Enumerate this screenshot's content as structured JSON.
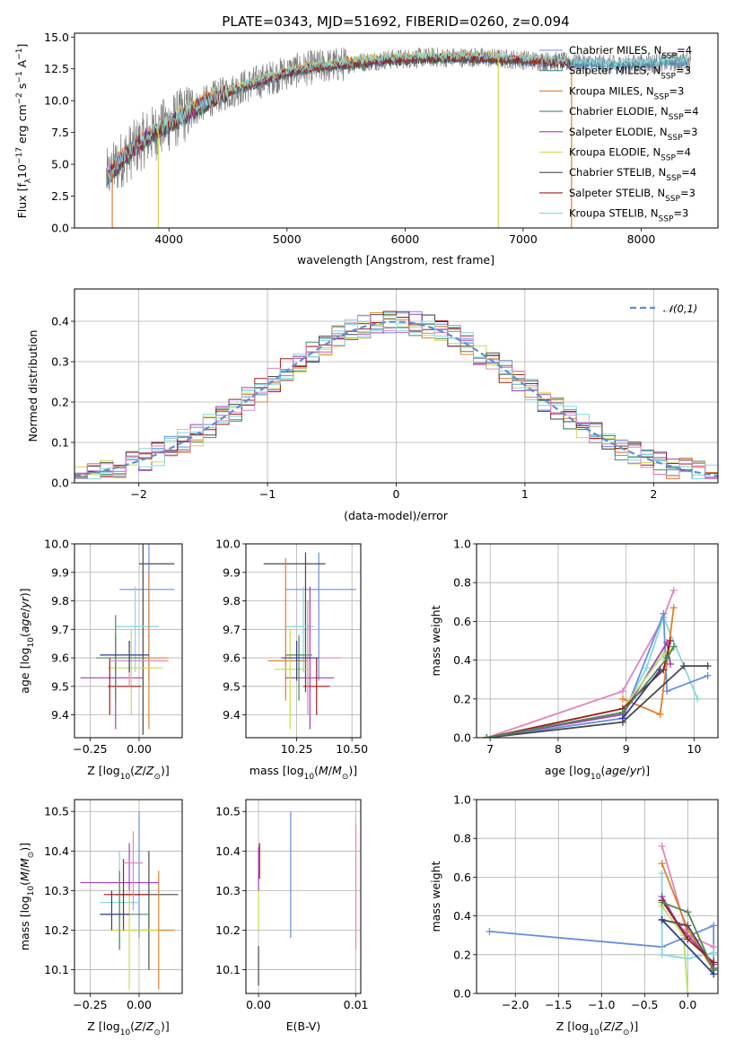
{
  "title": "PLATE=0343, MJD=51692, FIBERID=0260, z=0.094",
  "colors": {
    "data": "#808080",
    "gauss": "#5b8fd6",
    "models": [
      "#6a8fdc",
      "#7fd6da",
      "#e07f2a",
      "#4c8a59",
      "#a33fb3",
      "#cfd94c",
      "#4a4a4a",
      "#a11c1c",
      "#84d9df",
      "#e086c0",
      "#b6e06b",
      "#2f3f8f"
    ]
  },
  "chart_data": [
    {
      "id": "spectrum",
      "type": "line",
      "xlabel": "wavelength [Angstrom, rest frame]",
      "ylabel": "Flux [f_λ10^-17 erg cm^-2 s^-1 A^-1]",
      "xlim": [
        3200,
        8650
      ],
      "ylim": [
        0,
        15.3
      ],
      "xticks": [
        "4000",
        "5000",
        "6000",
        "7000",
        "8000"
      ],
      "yticks": [
        "0.0",
        "2.5",
        "5.0",
        "7.5",
        "10.0",
        "12.5",
        "15.0"
      ],
      "legend_position": "upper-right",
      "legend": [
        {
          "label": "Chabrier MILES, N_SSP=4",
          "color": "#6a8fdc"
        },
        {
          "label": "Salpeter MILES, N_SSP=3",
          "color": "#4a8a8a"
        },
        {
          "label": "Kroupa MILES, N_SSP=3",
          "color": "#e07f2a"
        },
        {
          "label": "Chabrier ELODIE, N_SSP=4",
          "color": "#4c8a59"
        },
        {
          "label": "Salpeter ELODIE, N_SSP=3",
          "color": "#a33fb3"
        },
        {
          "label": "Kroupa ELODIE, N_SSP=4",
          "color": "#cfd94c"
        },
        {
          "label": "Chabrier STELIB, N_SSP=4",
          "color": "#4a4a4a"
        },
        {
          "label": "Salpeter STELIB, N_SSP=3",
          "color": "#a11c1c"
        },
        {
          "label": "Kroupa STELIB, N_SSP=3",
          "color": "#84d9df"
        }
      ],
      "continuum": {
        "x": [
          3480,
          3600,
          3800,
          4000,
          4200,
          4400,
          4600,
          4800,
          5000,
          5200,
          5400,
          5600,
          5800,
          6000,
          6200,
          6400,
          6600,
          6800,
          7000,
          7200,
          7400,
          7600,
          7800,
          8000,
          8200,
          8400
        ],
        "y": [
          4.0,
          5.4,
          7.0,
          8.2,
          9.3,
          10.3,
          11.0,
          11.6,
          12.2,
          12.6,
          12.8,
          13.0,
          13.2,
          13.3,
          13.4,
          13.4,
          13.4,
          13.3,
          13.2,
          13.1,
          13.0,
          12.9,
          12.8,
          12.9,
          13.0,
          13.1
        ]
      },
      "model_ranges": [
        {
          "model": 0,
          "x": [
            3480,
            8400
          ]
        },
        {
          "model": 1,
          "x": [
            3480,
            8400
          ]
        },
        {
          "model": 2,
          "x": [
            3480,
            7400
          ]
        },
        {
          "model": 3,
          "x": [
            3500,
            6800
          ]
        },
        {
          "model": 4,
          "x": [
            3500,
            6800
          ]
        },
        {
          "model": 5,
          "x": [
            3900,
            6800
          ]
        },
        {
          "model": 6,
          "x": [
            3480,
            7400
          ]
        },
        {
          "model": 7,
          "x": [
            3480,
            7400
          ]
        },
        {
          "model": 8,
          "x": [
            3480,
            8400
          ]
        }
      ]
    },
    {
      "id": "residual-histogram",
      "type": "step",
      "xlabel": "(data-model)/error",
      "ylabel": "Normed distribution",
      "xlim": [
        -2.5,
        2.5
      ],
      "ylim": [
        0,
        0.48
      ],
      "xticks": [
        "-2",
        "-1",
        "0",
        "1",
        "2"
      ],
      "yticks": [
        "0.0",
        "0.1",
        "0.2",
        "0.3",
        "0.4"
      ],
      "grid": true,
      "legend_position": "upper-right",
      "legend": [
        {
          "label": "𝒩(0,1)",
          "style": "dashed",
          "color": "#5b8fd6"
        }
      ],
      "bin_width": 0.1,
      "gaussian": {
        "mean": 0,
        "sigma": 1
      }
    },
    {
      "id": "age-vs-Z",
      "type": "errorbar",
      "xlabel": "Z [log10(Z/Z⊙)]",
      "ylabel": "age [log10(age/yr)]",
      "xlim": [
        -0.33,
        0.22
      ],
      "ylim": [
        9.32,
        10.0
      ],
      "xticks": [
        "-0.25",
        "0.00"
      ],
      "yticks": [
        "9.4",
        "9.5",
        "9.6",
        "9.7",
        "9.8",
        "9.9",
        "10.0"
      ],
      "grid": true,
      "points": [
        {
          "c": 0,
          "x": [
            -0.1,
            0.05,
            0.18
          ],
          "y": [
            9.52,
            9.84,
            10.0
          ]
        },
        {
          "c": 6,
          "x": [
            0.0,
            0.02,
            0.18
          ],
          "y": [
            9.33,
            9.93,
            10.0
          ]
        },
        {
          "c": 8,
          "x": [
            -0.12,
            -0.02,
            0.1
          ],
          "y": [
            9.55,
            9.71,
            9.85
          ]
        },
        {
          "c": 2,
          "x": [
            -0.05,
            0.05,
            0.15
          ],
          "y": [
            9.35,
            9.6,
            9.9
          ]
        },
        {
          "c": 4,
          "x": [
            -0.3,
            -0.12,
            0.02
          ],
          "y": [
            9.35,
            9.53,
            9.68
          ]
        },
        {
          "c": 5,
          "x": [
            -0.16,
            -0.04,
            0.12
          ],
          "y": [
            9.4,
            9.565,
            9.7
          ]
        },
        {
          "c": 7,
          "x": [
            -0.16,
            -0.15,
            0.01
          ],
          "y": [
            9.4,
            9.5,
            9.6
          ]
        },
        {
          "c": 3,
          "x": [
            -0.22,
            -0.12,
            0.04
          ],
          "y": [
            9.45,
            9.6,
            9.75
          ]
        },
        {
          "c": 9,
          "x": [
            -0.15,
            -0.05,
            0.15
          ],
          "y": [
            9.5,
            9.59,
            9.66
          ]
        },
        {
          "c": 11,
          "x": [
            -0.2,
            -0.05,
            0.05
          ],
          "y": [
            9.55,
            9.61,
            9.66
          ]
        }
      ]
    },
    {
      "id": "age-vs-mass",
      "type": "errorbar",
      "xlabel": "mass [log10(M/M⊙)]",
      "ylabel": "",
      "xlim": [
        10.02,
        10.54
      ],
      "ylim": [
        9.32,
        10.0
      ],
      "xticks": [
        "10.25",
        "10.50"
      ],
      "yticks": [
        "9.4",
        "9.5",
        "9.6",
        "9.7",
        "9.8",
        "9.9",
        "10.0"
      ],
      "grid": true,
      "points": [
        {
          "c": 0,
          "x": [
            10.2,
            10.35,
            10.52
          ],
          "y": [
            9.52,
            9.84,
            9.97
          ]
        },
        {
          "c": 6,
          "x": [
            10.1,
            10.29,
            10.38
          ],
          "y": [
            9.48,
            9.93,
            9.97
          ]
        },
        {
          "c": 8,
          "x": [
            10.2,
            10.28,
            10.33
          ],
          "y": [
            9.55,
            9.71,
            9.85
          ]
        },
        {
          "c": 2,
          "x": [
            10.12,
            10.2,
            10.3
          ],
          "y": [
            9.45,
            9.59,
            9.95
          ]
        },
        {
          "c": 4,
          "x": [
            10.2,
            10.31,
            10.42
          ],
          "y": [
            9.35,
            9.53,
            9.85
          ]
        },
        {
          "c": 5,
          "x": [
            10.15,
            10.22,
            10.3
          ],
          "y": [
            9.35,
            9.56,
            9.7
          ]
        },
        {
          "c": 7,
          "x": [
            10.28,
            10.34,
            10.4
          ],
          "y": [
            9.4,
            9.5,
            9.6
          ]
        },
        {
          "c": 3,
          "x": [
            10.2,
            10.26,
            10.32
          ],
          "y": [
            9.45,
            9.61,
            9.68
          ]
        },
        {
          "c": 9,
          "x": [
            10.2,
            10.3,
            10.45
          ],
          "y": [
            9.4,
            9.6,
            9.8
          ]
        },
        {
          "c": 11,
          "x": [
            10.18,
            10.25,
            10.35
          ],
          "y": [
            9.52,
            9.6,
            9.66
          ]
        }
      ]
    },
    {
      "id": "mass-weight-vs-age",
      "type": "line",
      "xlabel": "age  [log10(age/yr)]",
      "ylabel": "mass weight",
      "xlim": [
        6.8,
        10.35
      ],
      "ylim": [
        0,
        1.0
      ],
      "xticks": [
        "7",
        "8",
        "9",
        "10"
      ],
      "yticks": [
        "0.0",
        "0.2",
        "0.4",
        "0.6",
        "0.8",
        "1.0"
      ],
      "grid": true,
      "series": [
        {
          "c": 9,
          "x": [
            6.95,
            8.95,
            9.55,
            9.7
          ],
          "y": [
            0.0,
            0.24,
            0.62,
            0.76
          ]
        },
        {
          "c": 8,
          "x": [
            6.95,
            8.95,
            9.3,
            9.55,
            10.05
          ],
          "y": [
            0.0,
            0.13,
            0.36,
            0.62,
            0.2
          ]
        },
        {
          "c": 0,
          "x": [
            6.95,
            8.95,
            9.55,
            9.6,
            10.2
          ],
          "y": [
            0.0,
            0.1,
            0.64,
            0.24,
            0.32
          ]
        },
        {
          "c": 2,
          "x": [
            8.95,
            9.5,
            9.7
          ],
          "y": [
            0.2,
            0.12,
            0.67
          ]
        },
        {
          "c": 4,
          "x": [
            6.95,
            8.95,
            9.6,
            9.65
          ],
          "y": [
            0.0,
            0.12,
            0.49,
            0.38
          ]
        },
        {
          "c": 10,
          "x": [
            6.95,
            8.95,
            9.55,
            9.65
          ],
          "y": [
            0.0,
            0.15,
            0.43,
            0.45
          ]
        },
        {
          "c": 6,
          "x": [
            6.95,
            8.95,
            9.85,
            10.2
          ],
          "y": [
            0.0,
            0.08,
            0.37,
            0.37
          ]
        },
        {
          "c": 7,
          "x": [
            6.95,
            8.95,
            9.55,
            9.65
          ],
          "y": [
            0.0,
            0.15,
            0.35,
            0.5
          ]
        },
        {
          "c": 3,
          "x": [
            6.95,
            8.95,
            9.6,
            9.7
          ],
          "y": [
            0.0,
            0.13,
            0.41,
            0.47
          ]
        },
        {
          "c": 11,
          "x": [
            8.95,
            9.5
          ],
          "y": [
            0.1,
            0.35
          ]
        }
      ]
    },
    {
      "id": "mass-vs-Z",
      "type": "errorbar",
      "xlabel": "Z [log10(Z/Z⊙)]",
      "ylabel": "mass [log10(M/M⊙)]",
      "xlim": [
        -0.33,
        0.22
      ],
      "ylim": [
        10.04,
        10.53
      ],
      "xticks": [
        "-0.25",
        "0.00"
      ],
      "yticks": [
        "10.1",
        "10.2",
        "10.3",
        "10.4",
        "10.5"
      ],
      "grid": true,
      "points": [
        {
          "c": 0,
          "x": [
            0.0,
            0.0,
            0.0
          ],
          "y": [
            10.18,
            10.34,
            10.5
          ]
        },
        {
          "c": 6,
          "x": [
            -0.12,
            0.05,
            0.2
          ],
          "y": [
            10.1,
            10.29,
            10.4
          ]
        },
        {
          "c": 8,
          "x": [
            -0.2,
            -0.1,
            0.0
          ],
          "y": [
            10.15,
            10.27,
            10.4
          ]
        },
        {
          "c": 2,
          "x": [
            -0.05,
            0.1,
            0.18
          ],
          "y": [
            10.05,
            10.2,
            10.35
          ]
        },
        {
          "c": 4,
          "x": [
            -0.3,
            -0.05,
            0.1
          ],
          "y": [
            10.25,
            10.32,
            10.42
          ]
        },
        {
          "c": 5,
          "x": [
            -0.15,
            -0.05,
            0.1
          ],
          "y": [
            10.05,
            10.2,
            10.3
          ]
        },
        {
          "c": 7,
          "x": [
            -0.18,
            -0.08,
            0.05
          ],
          "y": [
            10.2,
            10.29,
            10.38
          ]
        },
        {
          "c": 3,
          "x": [
            -0.2,
            -0.1,
            0.05
          ],
          "y": [
            10.15,
            10.24,
            10.35
          ]
        },
        {
          "c": 9,
          "x": [
            -0.08,
            -0.03,
            0.02
          ],
          "y": [
            10.25,
            10.37,
            10.45
          ]
        },
        {
          "c": 11,
          "x": [
            -0.2,
            -0.14,
            -0.05
          ],
          "y": [
            10.2,
            10.24,
            10.3
          ]
        }
      ]
    },
    {
      "id": "mass-vs-ebv",
      "type": "errorbar",
      "xlabel": "E(B-V)",
      "ylabel": "",
      "xlim": [
        -0.0013,
        0.0105
      ],
      "ylim": [
        10.04,
        10.53
      ],
      "xticks": [
        "0.00",
        "0.01"
      ],
      "yticks": [
        "10.1",
        "10.2",
        "10.3",
        "10.4",
        "10.5"
      ],
      "grid": true,
      "points": [
        {
          "c": 0,
          "x": [
            0.0033,
            0.0033,
            0.0033
          ],
          "y": [
            10.18,
            10.34,
            10.5
          ]
        },
        {
          "c": 9,
          "x": [
            0.01,
            0.01,
            0.01
          ],
          "y": [
            10.15,
            10.3,
            10.47
          ]
        },
        {
          "c": 6,
          "x": [
            0.0,
            0.0,
            0.0
          ],
          "y": [
            10.06,
            10.1,
            10.16
          ]
        },
        {
          "c": 7,
          "x": [
            0.0001,
            0.0001,
            0.0001
          ],
          "y": [
            10.33,
            10.38,
            10.42
          ]
        },
        {
          "c": 4,
          "x": [
            0.0,
            0.0,
            0.0
          ],
          "y": [
            10.3,
            10.35,
            10.41
          ]
        },
        {
          "c": 5,
          "x": [
            0.0,
            0.0,
            0.0
          ],
          "y": [
            10.2,
            10.25,
            10.3
          ]
        }
      ]
    },
    {
      "id": "mass-weight-vs-Z",
      "type": "line",
      "xlabel": "Z [log10(Z/Z⊙)]",
      "ylabel": "mass weight",
      "xlim": [
        -2.45,
        0.35
      ],
      "ylim": [
        0,
        1.0
      ],
      "xticks": [
        "-2.0",
        "-1.5",
        "-1.0",
        "-0.5",
        "0.0"
      ],
      "yticks": [
        "0.0",
        "0.2",
        "0.4",
        "0.6",
        "0.8",
        "1.0"
      ],
      "grid": true,
      "series": [
        {
          "c": 0,
          "x": [
            -2.3,
            -0.3,
            0.3,
            0.3
          ],
          "y": [
            0.32,
            0.24,
            0.35,
            0.1
          ]
        },
        {
          "c": 9,
          "x": [
            -0.3,
            0.0,
            0.3
          ],
          "y": [
            0.76,
            0.3,
            0.24
          ]
        },
        {
          "c": 2,
          "x": [
            -0.3,
            0.0,
            0.3
          ],
          "y": [
            0.67,
            0.33,
            0.12
          ]
        },
        {
          "c": 8,
          "x": [
            -0.3,
            -0.3,
            0.0,
            0.3
          ],
          "y": [
            0.62,
            0.2,
            0.18,
            0.21
          ]
        },
        {
          "c": 4,
          "x": [
            -0.3,
            -0.1,
            0.3
          ],
          "y": [
            0.5,
            0.35,
            0.15
          ]
        },
        {
          "c": 10,
          "x": [
            -0.3,
            -0.05,
            0.0
          ],
          "y": [
            0.45,
            0.3,
            0.0
          ]
        },
        {
          "c": 6,
          "x": [
            -0.3,
            0.0,
            0.3
          ],
          "y": [
            0.38,
            0.35,
            0.13
          ]
        },
        {
          "c": 7,
          "x": [
            -0.3,
            0.0,
            0.3
          ],
          "y": [
            0.48,
            0.28,
            0.16
          ]
        },
        {
          "c": 3,
          "x": [
            -0.3,
            0.0,
            0.3
          ],
          "y": [
            0.47,
            0.42,
            0.12
          ]
        },
        {
          "c": 11,
          "x": [
            -0.3,
            0.3
          ],
          "y": [
            0.38,
            0.1
          ]
        }
      ]
    }
  ]
}
